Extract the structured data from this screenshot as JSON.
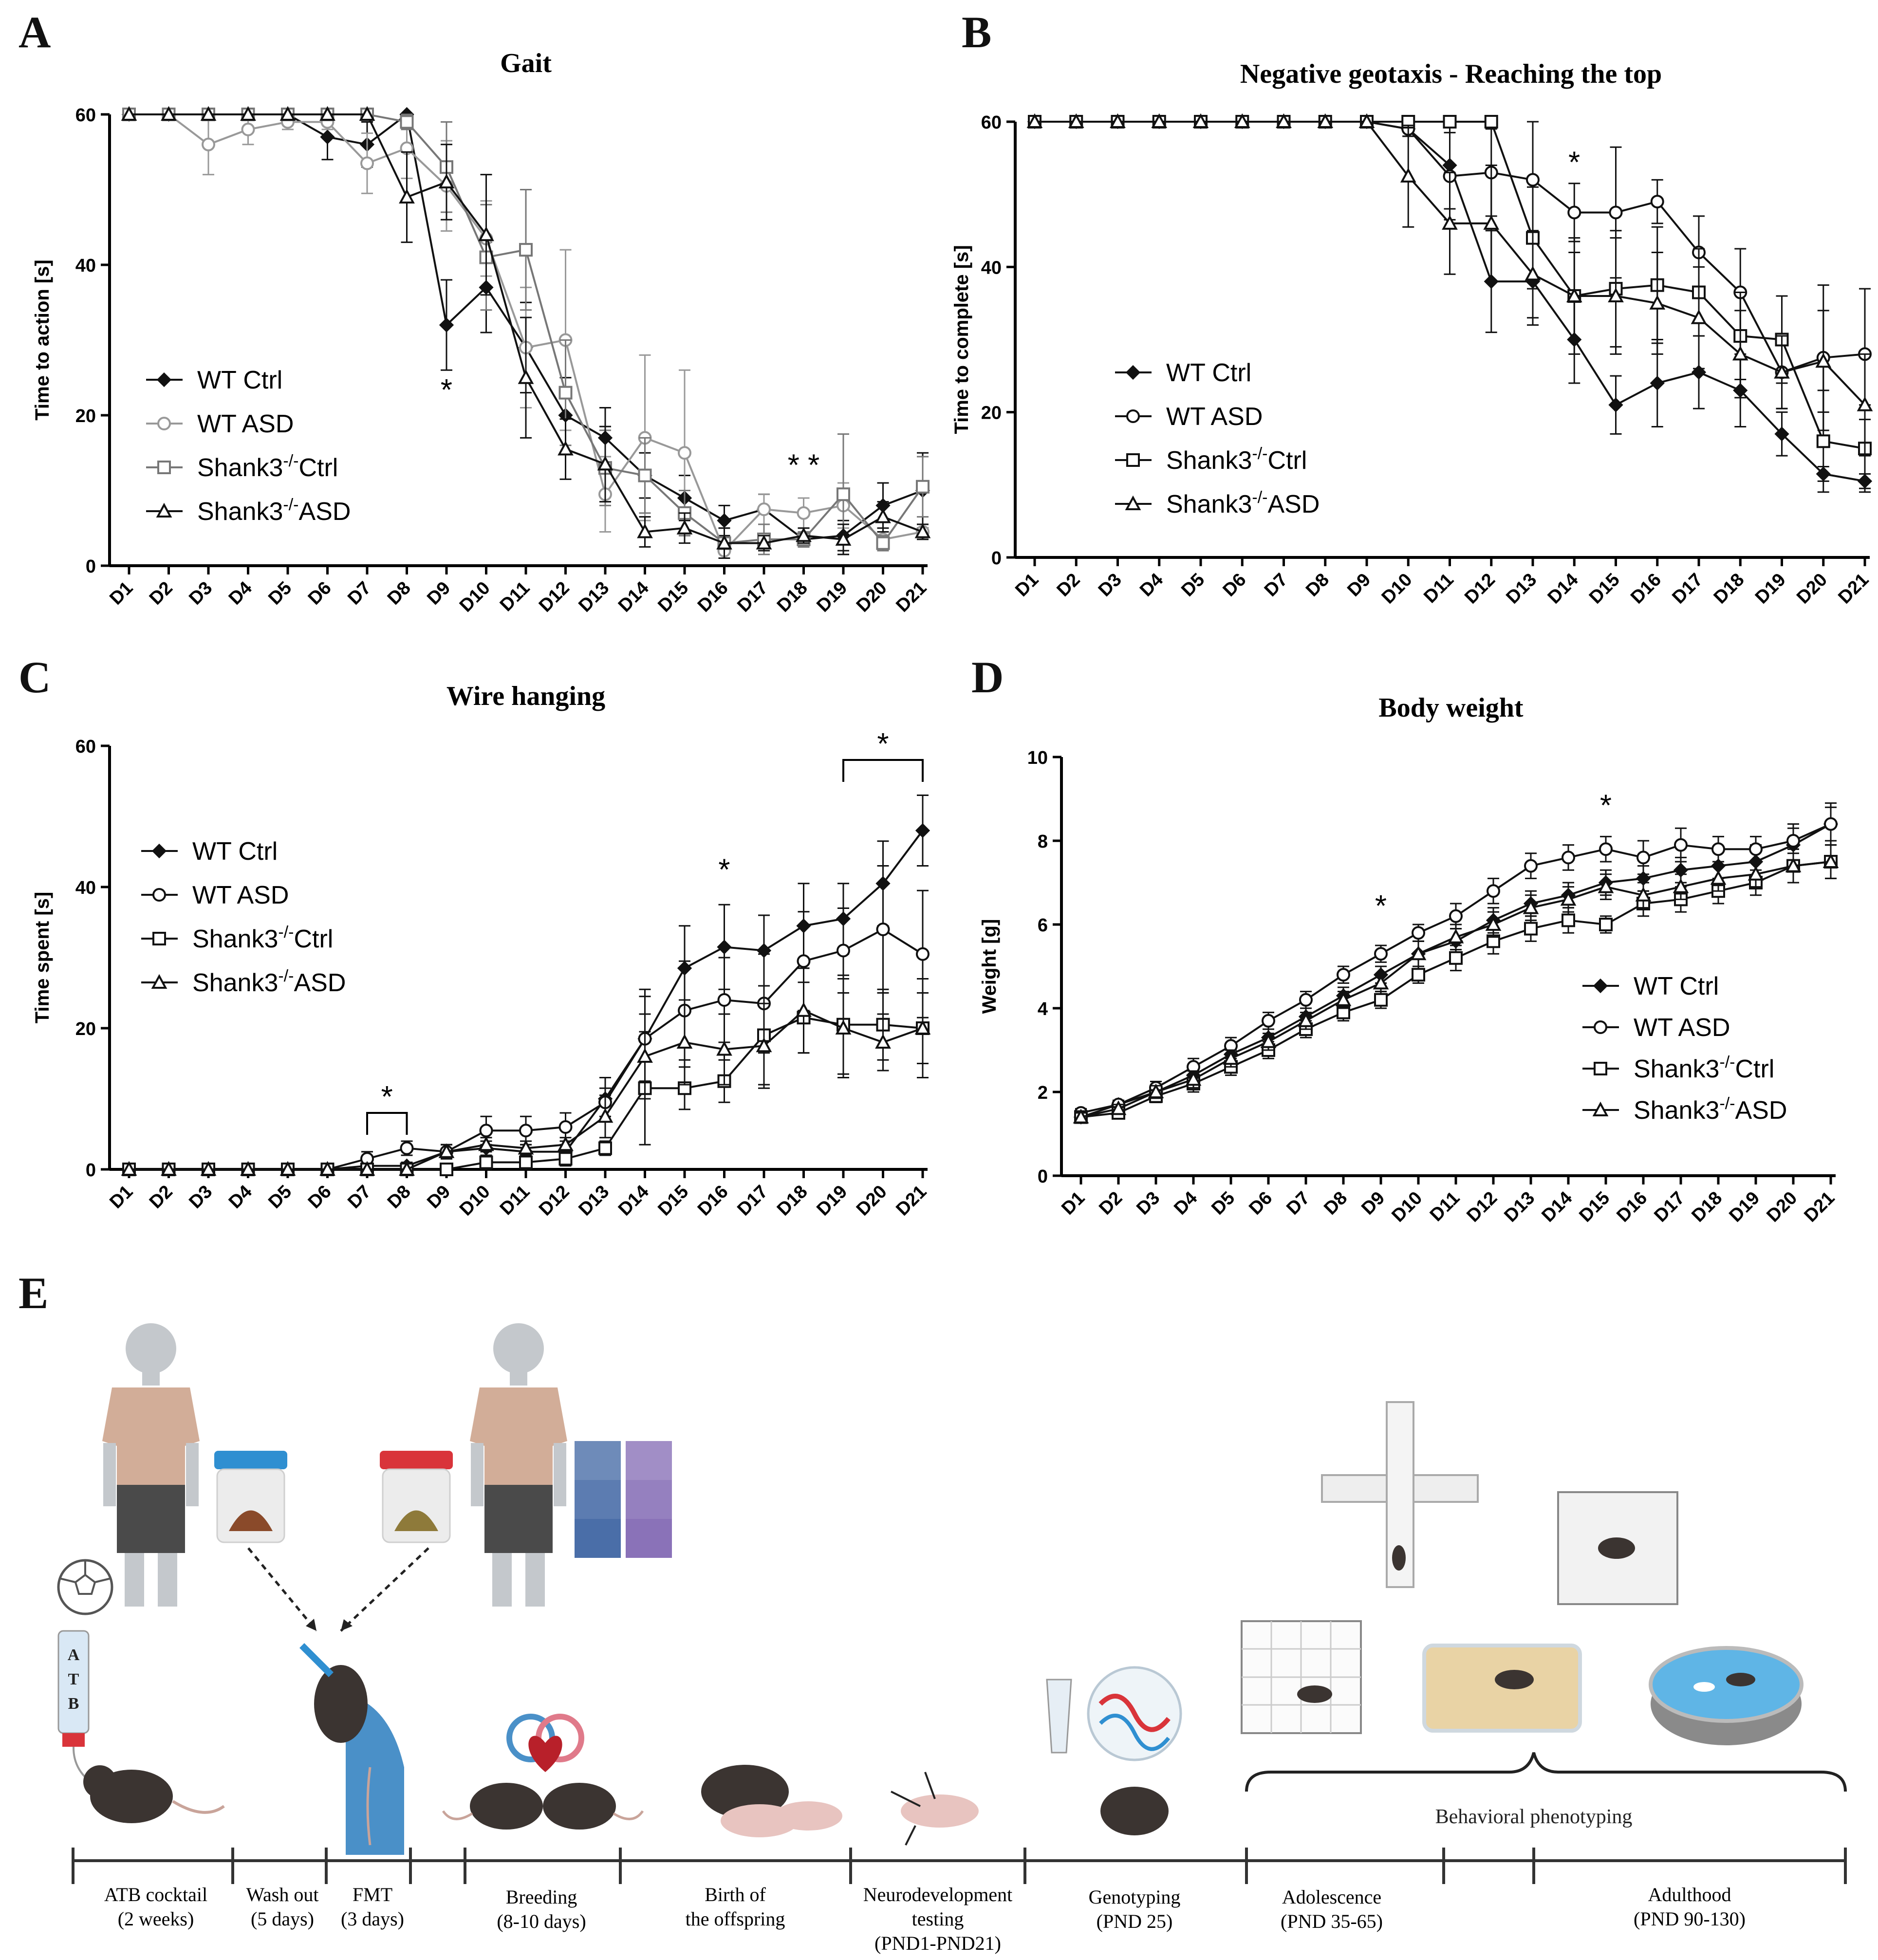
{
  "panels": {
    "A": "A",
    "B": "B",
    "C": "C",
    "D": "D",
    "E": "E"
  },
  "chart_data": [
    {
      "id": "A",
      "type": "line",
      "title": "Gait",
      "xlabel": "",
      "ylabel": "Time to action [s]",
      "ylim": [
        0,
        60
      ],
      "yticks": [
        0,
        20,
        40,
        60
      ],
      "categories": [
        "D1",
        "D2",
        "D3",
        "D4",
        "D5",
        "D6",
        "D7",
        "D8",
        "D9",
        "D10",
        "D11",
        "D12",
        "D13",
        "D14",
        "D15",
        "D16",
        "D17",
        "D18",
        "D19",
        "D20",
        "D21"
      ],
      "series": [
        {
          "name": "WT Ctrl",
          "marker": "diamond",
          "color": "#111111",
          "values": [
            60,
            60,
            60,
            60,
            60,
            57,
            56,
            60,
            32,
            37,
            29,
            20,
            17,
            12,
            9,
            6,
            7.5,
            3.5,
            4,
            8,
            10
          ],
          "errors": [
            0,
            0,
            0,
            0,
            0,
            3,
            3,
            0,
            6,
            6,
            6,
            5,
            4,
            3,
            3,
            2,
            2,
            1,
            2,
            3,
            5
          ]
        },
        {
          "name": "WT ASD",
          "marker": "circle",
          "color": "#999999",
          "values": [
            60,
            60,
            56,
            58,
            59,
            59,
            53.5,
            55.5,
            50.5,
            43.5,
            29,
            30,
            9.5,
            17,
            15,
            2,
            7.5,
            7,
            8,
            3.5,
            4.5
          ],
          "errors": [
            0,
            0,
            4,
            2,
            1,
            1,
            4,
            4,
            6,
            5,
            8,
            12,
            5,
            11,
            11,
            1,
            2,
            2,
            3,
            1,
            1
          ]
        },
        {
          "name": "Shank3-/-Ctrl",
          "marker": "square",
          "color": "#777777",
          "values": [
            60,
            60,
            60,
            60,
            60,
            60,
            60,
            59,
            53,
            41,
            42,
            23,
            13,
            12,
            7,
            3,
            3.5,
            3.5,
            9.5,
            3,
            10.5
          ],
          "errors": [
            0,
            0,
            0,
            0,
            0,
            0,
            0,
            1,
            6,
            7,
            8,
            7,
            5,
            5,
            3,
            2,
            2,
            1,
            8,
            1,
            4
          ]
        },
        {
          "name": "Shank3-/-ASD",
          "marker": "triangle",
          "color": "#111111",
          "values": [
            60,
            60,
            60,
            60,
            60,
            60,
            60,
            49,
            51,
            44,
            25,
            15.5,
            13.5,
            4.5,
            5,
            3,
            3,
            4,
            3.5,
            6.5,
            4.5
          ],
          "errors": [
            0,
            0,
            0,
            0,
            0,
            0,
            0,
            6,
            5,
            8,
            8,
            4,
            5,
            2,
            2,
            2,
            1,
            1,
            2,
            2,
            1
          ]
        }
      ],
      "annotations": [
        {
          "text": "*",
          "day": "D9",
          "y": 22
        },
        {
          "text": "* *",
          "day": "D18",
          "y": 12
        }
      ],
      "legend": "left"
    },
    {
      "id": "B",
      "type": "line",
      "title": "Negative geotaxis - Reaching the top",
      "xlabel": "",
      "ylabel": "Time to complete [s]",
      "ylim": [
        0,
        60
      ],
      "yticks": [
        0,
        20,
        40,
        60
      ],
      "categories": [
        "D1",
        "D2",
        "D3",
        "D4",
        "D5",
        "D6",
        "D7",
        "D8",
        "D9",
        "D10",
        "D11",
        "D12",
        "D13",
        "D14",
        "D15",
        "D16",
        "D17",
        "D18",
        "D19",
        "D20",
        "D21"
      ],
      "series": [
        {
          "name": "WT Ctrl",
          "marker": "diamond",
          "color": "#111111",
          "values": [
            60,
            60,
            60,
            60,
            60,
            60,
            60,
            60,
            60,
            59,
            54,
            38,
            38,
            30,
            21,
            24,
            25.5,
            23,
            17,
            11.5,
            10.5
          ],
          "errors": [
            0,
            0,
            0,
            0,
            0,
            0,
            0,
            0,
            0,
            1,
            6,
            7,
            6,
            6,
            4,
            6,
            5,
            5,
            3,
            1,
            1
          ]
        },
        {
          "name": "WT ASD",
          "marker": "circle",
          "color": "#111111",
          "values": [
            60,
            60,
            60,
            60,
            60,
            60,
            60,
            60,
            60,
            59,
            52.5,
            53,
            52,
            47.5,
            47.5,
            49,
            42,
            36.5,
            25.5,
            27.5,
            28
          ],
          "errors": [
            0,
            0,
            0,
            0,
            0,
            0,
            0,
            0,
            0,
            1,
            6,
            6,
            8,
            4,
            9,
            3,
            5,
            6,
            5,
            10,
            9
          ]
        },
        {
          "name": "Shank3-/-Ctrl",
          "marker": "square",
          "color": "#111111",
          "values": [
            60,
            60,
            60,
            60,
            60,
            60,
            60,
            60,
            60,
            60,
            60,
            60,
            44,
            36,
            37,
            37.5,
            36.5,
            30.5,
            30,
            16,
            15
          ],
          "errors": [
            0,
            0,
            0,
            0,
            0,
            0,
            0,
            0,
            0,
            0,
            0,
            0,
            7,
            8,
            8,
            8,
            6,
            6,
            6,
            7,
            6
          ]
        },
        {
          "name": "Shank3-/-ASD",
          "marker": "triangle",
          "color": "#111111",
          "values": [
            60,
            60,
            60,
            60,
            60,
            60,
            60,
            60,
            60,
            52.5,
            46,
            46,
            39,
            36,
            36,
            35,
            33,
            28,
            25.5,
            27,
            21
          ],
          "errors": [
            0,
            0,
            0,
            0,
            0,
            0,
            0,
            0,
            0,
            7,
            7,
            8,
            6,
            6,
            8,
            7,
            7,
            6,
            5,
            7,
            7
          ]
        }
      ],
      "annotations": [
        {
          "text": "*",
          "day": "D14",
          "y": 53
        }
      ],
      "legend": "left"
    },
    {
      "id": "C",
      "type": "line",
      "title": "Wire hanging",
      "xlabel": "",
      "ylabel": "Time spent [s]",
      "ylim": [
        0,
        60
      ],
      "yticks": [
        0,
        20,
        40,
        60
      ],
      "categories": [
        "D1",
        "D2",
        "D3",
        "D4",
        "D5",
        "D6",
        "D7",
        "D8",
        "D9",
        "D10",
        "D11",
        "D12",
        "D13",
        "D14",
        "D15",
        "D16",
        "D17",
        "D18",
        "D19",
        "D20",
        "D21"
      ],
      "series": [
        {
          "name": "WT Ctrl",
          "marker": "diamond",
          "color": "#111111",
          "values": [
            0,
            0,
            0,
            0,
            0,
            0,
            0.5,
            0.5,
            2.5,
            3,
            2.5,
            2.5,
            10,
            18.5,
            28.5,
            31.5,
            31,
            34.5,
            35.5,
            40.5,
            48
          ],
          "errors": [
            0,
            0,
            0,
            0,
            0,
            0,
            0.5,
            0.5,
            1,
            1,
            1,
            1,
            3,
            7,
            6,
            6,
            5,
            6,
            5,
            6,
            5
          ]
        },
        {
          "name": "WT ASD",
          "marker": "circle",
          "color": "#111111",
          "values": [
            0,
            0,
            0,
            0,
            0,
            0,
            1.5,
            3,
            2.5,
            5.5,
            5.5,
            6,
            9.5,
            18.5,
            22.5,
            24,
            23.5,
            29.5,
            31,
            34,
            30.5
          ],
          "errors": [
            0,
            0,
            0,
            0,
            0,
            0,
            1,
            1,
            1,
            2,
            2,
            2,
            2,
            6,
            7,
            6,
            7,
            7,
            6,
            9,
            9
          ]
        },
        {
          "name": "Shank3-/-Ctrl",
          "marker": "square",
          "color": "#111111",
          "values": [
            0,
            0,
            0,
            0,
            0,
            0,
            0,
            0,
            0,
            1,
            1,
            1.5,
            3,
            11.5,
            11.5,
            12.5,
            19,
            21.5,
            20.5,
            20.5,
            20
          ],
          "errors": [
            0,
            0,
            0,
            0,
            0,
            0,
            0,
            0,
            0,
            1,
            1,
            1,
            1,
            8,
            3,
            3,
            7,
            5,
            7,
            5,
            7
          ]
        },
        {
          "name": "Shank3-/-ASD",
          "marker": "triangle",
          "color": "#111111",
          "values": [
            0,
            0,
            0,
            0,
            0,
            0,
            0,
            0,
            2.5,
            3.5,
            3,
            3.5,
            7.5,
            16,
            18,
            17,
            17.5,
            22.5,
            20,
            18,
            20
          ],
          "errors": [
            0,
            0,
            0,
            0,
            0,
            0,
            0,
            0,
            1,
            1,
            1,
            1,
            3,
            6,
            6,
            5,
            6,
            6,
            7,
            4,
            5
          ]
        }
      ],
      "annotations": [
        {
          "text": "*",
          "bracket": [
            "D7",
            "D8"
          ],
          "y": 8
        },
        {
          "text": "*",
          "day": "D16",
          "y": 41
        },
        {
          "text": "*",
          "bracket": [
            "D19",
            "D21"
          ],
          "y": 58
        }
      ],
      "legend": "left"
    },
    {
      "id": "D",
      "type": "line",
      "title": "Body weight",
      "xlabel": "",
      "ylabel": "Weight [g]",
      "ylim": [
        0,
        10
      ],
      "yticks": [
        0,
        2,
        4,
        6,
        8,
        10
      ],
      "categories": [
        "D1",
        "D2",
        "D3",
        "D4",
        "D5",
        "D6",
        "D7",
        "D8",
        "D9",
        "D10",
        "D11",
        "D12",
        "D13",
        "D14",
        "D15",
        "D16",
        "D17",
        "D18",
        "D19",
        "D20",
        "D21"
      ],
      "series": [
        {
          "name": "WT Ctrl",
          "marker": "diamond",
          "color": "#111111",
          "values": [
            1.4,
            1.7,
            2.0,
            2.4,
            2.9,
            3.3,
            3.8,
            4.3,
            4.8,
            5.3,
            5.6,
            6.1,
            6.5,
            6.7,
            7.0,
            7.1,
            7.3,
            7.4,
            7.5,
            7.9,
            8.4
          ],
          "errors": [
            0.1,
            0.1,
            0.15,
            0.2,
            0.2,
            0.2,
            0.2,
            0.2,
            0.2,
            0.3,
            0.3,
            0.3,
            0.3,
            0.3,
            0.3,
            0.3,
            0.3,
            0.4,
            0.4,
            0.5,
            0.5
          ]
        },
        {
          "name": "WT ASD",
          "marker": "circle",
          "color": "#111111",
          "values": [
            1.5,
            1.7,
            2.1,
            2.6,
            3.1,
            3.7,
            4.2,
            4.8,
            5.3,
            5.8,
            6.2,
            6.8,
            7.4,
            7.6,
            7.8,
            7.6,
            7.9,
            7.8,
            7.8,
            8.0,
            8.4
          ],
          "errors": [
            0.1,
            0.1,
            0.15,
            0.2,
            0.2,
            0.2,
            0.2,
            0.2,
            0.2,
            0.2,
            0.3,
            0.3,
            0.3,
            0.3,
            0.3,
            0.4,
            0.4,
            0.3,
            0.3,
            0.3,
            0.4
          ]
        },
        {
          "name": "Shank3-/-Ctrl",
          "marker": "square",
          "color": "#111111",
          "values": [
            1.4,
            1.5,
            1.9,
            2.2,
            2.6,
            3.0,
            3.5,
            3.9,
            4.2,
            4.8,
            5.2,
            5.6,
            5.9,
            6.1,
            6.0,
            6.5,
            6.6,
            6.8,
            7.0,
            7.4,
            7.5
          ],
          "errors": [
            0.1,
            0.1,
            0.15,
            0.2,
            0.2,
            0.2,
            0.2,
            0.2,
            0.2,
            0.2,
            0.3,
            0.3,
            0.3,
            0.3,
            0.2,
            0.3,
            0.3,
            0.3,
            0.3,
            0.4,
            0.4
          ]
        },
        {
          "name": "Shank3-/-ASD",
          "marker": "triangle",
          "color": "#111111",
          "values": [
            1.4,
            1.6,
            2.0,
            2.3,
            2.8,
            3.2,
            3.7,
            4.2,
            4.6,
            5.3,
            5.7,
            6.0,
            6.4,
            6.6,
            6.9,
            6.7,
            6.9,
            7.1,
            7.2,
            7.4,
            7.5
          ],
          "errors": [
            0.1,
            0.1,
            0.15,
            0.2,
            0.2,
            0.2,
            0.2,
            0.2,
            0.2,
            0.3,
            0.3,
            0.3,
            0.3,
            0.3,
            0.3,
            0.3,
            0.3,
            0.3,
            0.3,
            0.4,
            0.4
          ]
        }
      ],
      "annotations": [
        {
          "text": "*",
          "day": "D9",
          "y": 6.2
        },
        {
          "text": "*",
          "day": "D15",
          "y": 8.6
        }
      ],
      "legend": "right"
    }
  ],
  "schematic": {
    "atb_letters": [
      "A",
      "T",
      "B"
    ],
    "behavioral_label": "Behavioral phenotyping",
    "timeline": [
      {
        "line1": "ATB cocktail",
        "line2": "(2 weeks)"
      },
      {
        "line1": "Wash out",
        "line2": "(5 days)"
      },
      {
        "line1": "FMT",
        "line2": "(3 days)"
      },
      {
        "line1": "Breeding",
        "line2": "(8-10 days)"
      },
      {
        "line1": "Birth of",
        "line2": "the offspring"
      },
      {
        "line1": "Neurodevelopment",
        "line2": "testing",
        "line3": "(PND1-PND21)"
      },
      {
        "line1": "Genotyping",
        "line2": "(PND 25)"
      },
      {
        "line1": "Adolescence",
        "line2": "(PND 35-65)"
      },
      {
        "line1": "Adulthood",
        "line2": "(PND 90-130)"
      }
    ],
    "colors": {
      "skin": "#c4c8cc",
      "shirt": "#d2ad98",
      "shorts": "#4a4a4a",
      "cap_blue": "#2f8fd1",
      "cap_red": "#d9343a",
      "poop_brown": "#8a4a2a",
      "poop_olive": "#8e7a3a",
      "block_blue": "#4a6ea8",
      "block_purple": "#8a72b8",
      "mouse": "#3b3431",
      "pup": "#e8c4c0",
      "glove": "#4a90c8",
      "water": "#5fb5e6",
      "board": "#e9d3a5"
    }
  }
}
